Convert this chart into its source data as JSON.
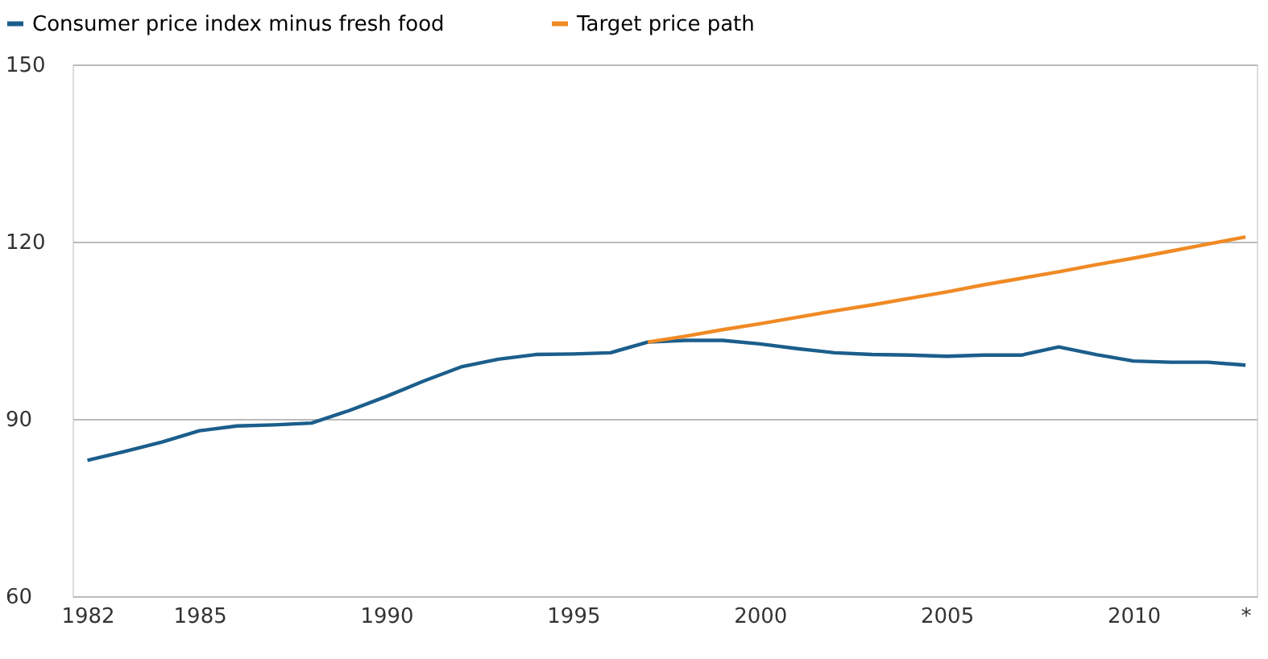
{
  "chart_data": {
    "type": "line",
    "x": [
      1982,
      1983,
      1984,
      1985,
      1986,
      1987,
      1988,
      1989,
      1990,
      1991,
      1992,
      1993,
      1994,
      1995,
      1996,
      1997,
      1998,
      1999,
      2000,
      2001,
      2002,
      2003,
      2004,
      2005,
      2006,
      2007,
      2008,
      2009,
      2010,
      2011,
      2012,
      2013
    ],
    "series": [
      {
        "name": "Consumer price index minus fresh food",
        "color": "#1b5e8c",
        "values": [
          83.0,
          84.5,
          86.1,
          88.0,
          88.8,
          89.0,
          89.3,
          91.4,
          93.8,
          96.4,
          98.8,
          100.1,
          100.9,
          101.0,
          101.2,
          103.0,
          103.3,
          103.3,
          102.7,
          101.9,
          101.2,
          100.9,
          100.8,
          100.6,
          100.8,
          100.8,
          102.2,
          100.9,
          99.8,
          99.6,
          99.6,
          99.1
        ]
      },
      {
        "name": "Target price path",
        "color": "#f08a24",
        "x": [
          1997,
          1998,
          1999,
          2000,
          2001,
          2002,
          2003,
          2004,
          2005,
          2006,
          2007,
          2008,
          2009,
          2010,
          2011,
          2012,
          2013
        ],
        "values": [
          103.0,
          104.0,
          105.1,
          106.1,
          107.2,
          108.3,
          109.3,
          110.4,
          111.5,
          112.7,
          113.8,
          114.9,
          116.1,
          117.2,
          118.4,
          119.6,
          120.8
        ]
      }
    ],
    "xlim": [
      1981.6,
      2013.3
    ],
    "xticks": [
      1982,
      1985,
      1990,
      1995,
      2000,
      2005,
      2010,
      {
        "value": 2013,
        "label": "*"
      }
    ],
    "ylim": [
      60,
      150
    ],
    "yticks": [
      60,
      90,
      120,
      150
    ],
    "grid": "y",
    "legend": "top left",
    "line_style": "solid",
    "marker": "none"
  }
}
